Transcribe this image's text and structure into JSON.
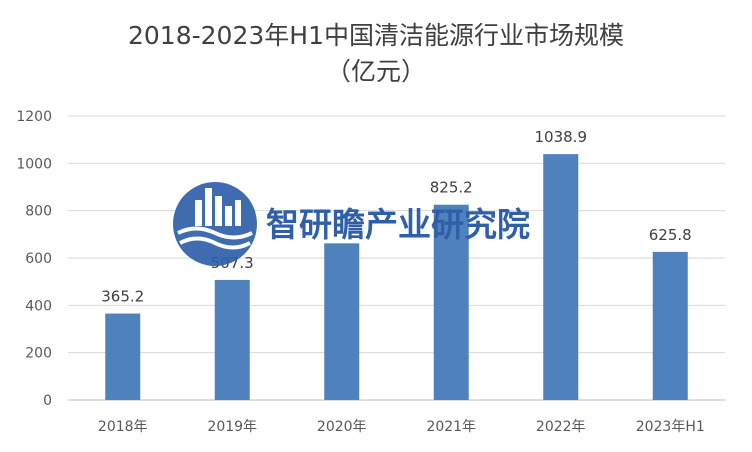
{
  "chart_data": {
    "type": "bar",
    "title": "2018-2023年H1中国清洁能源行业市场规模",
    "subtitle": "（亿元）",
    "categories": [
      "2018年",
      "2019年",
      "2020年",
      "2021年",
      "2022年",
      "2023年H1"
    ],
    "values": [
      365.2,
      507.3,
      662.0,
      825.2,
      1038.9,
      625.8
    ],
    "data_labels": [
      "365.2",
      "507.3",
      "",
      "825.2",
      "1038.9",
      "625.8"
    ],
    "ylim": [
      0,
      1200
    ],
    "yticks": [
      "0",
      "200",
      "400",
      "600",
      "800",
      "1000",
      "1200"
    ],
    "grid": true,
    "legend": "none",
    "colors": {
      "bar": "#4f81bd",
      "grid": "#d9d9d9",
      "axis": "#bfbfbf"
    }
  },
  "watermark": {
    "text": "智研瞻产业研究院",
    "icon": "building-wave-logo-icon",
    "color": "#2f5fa8"
  }
}
